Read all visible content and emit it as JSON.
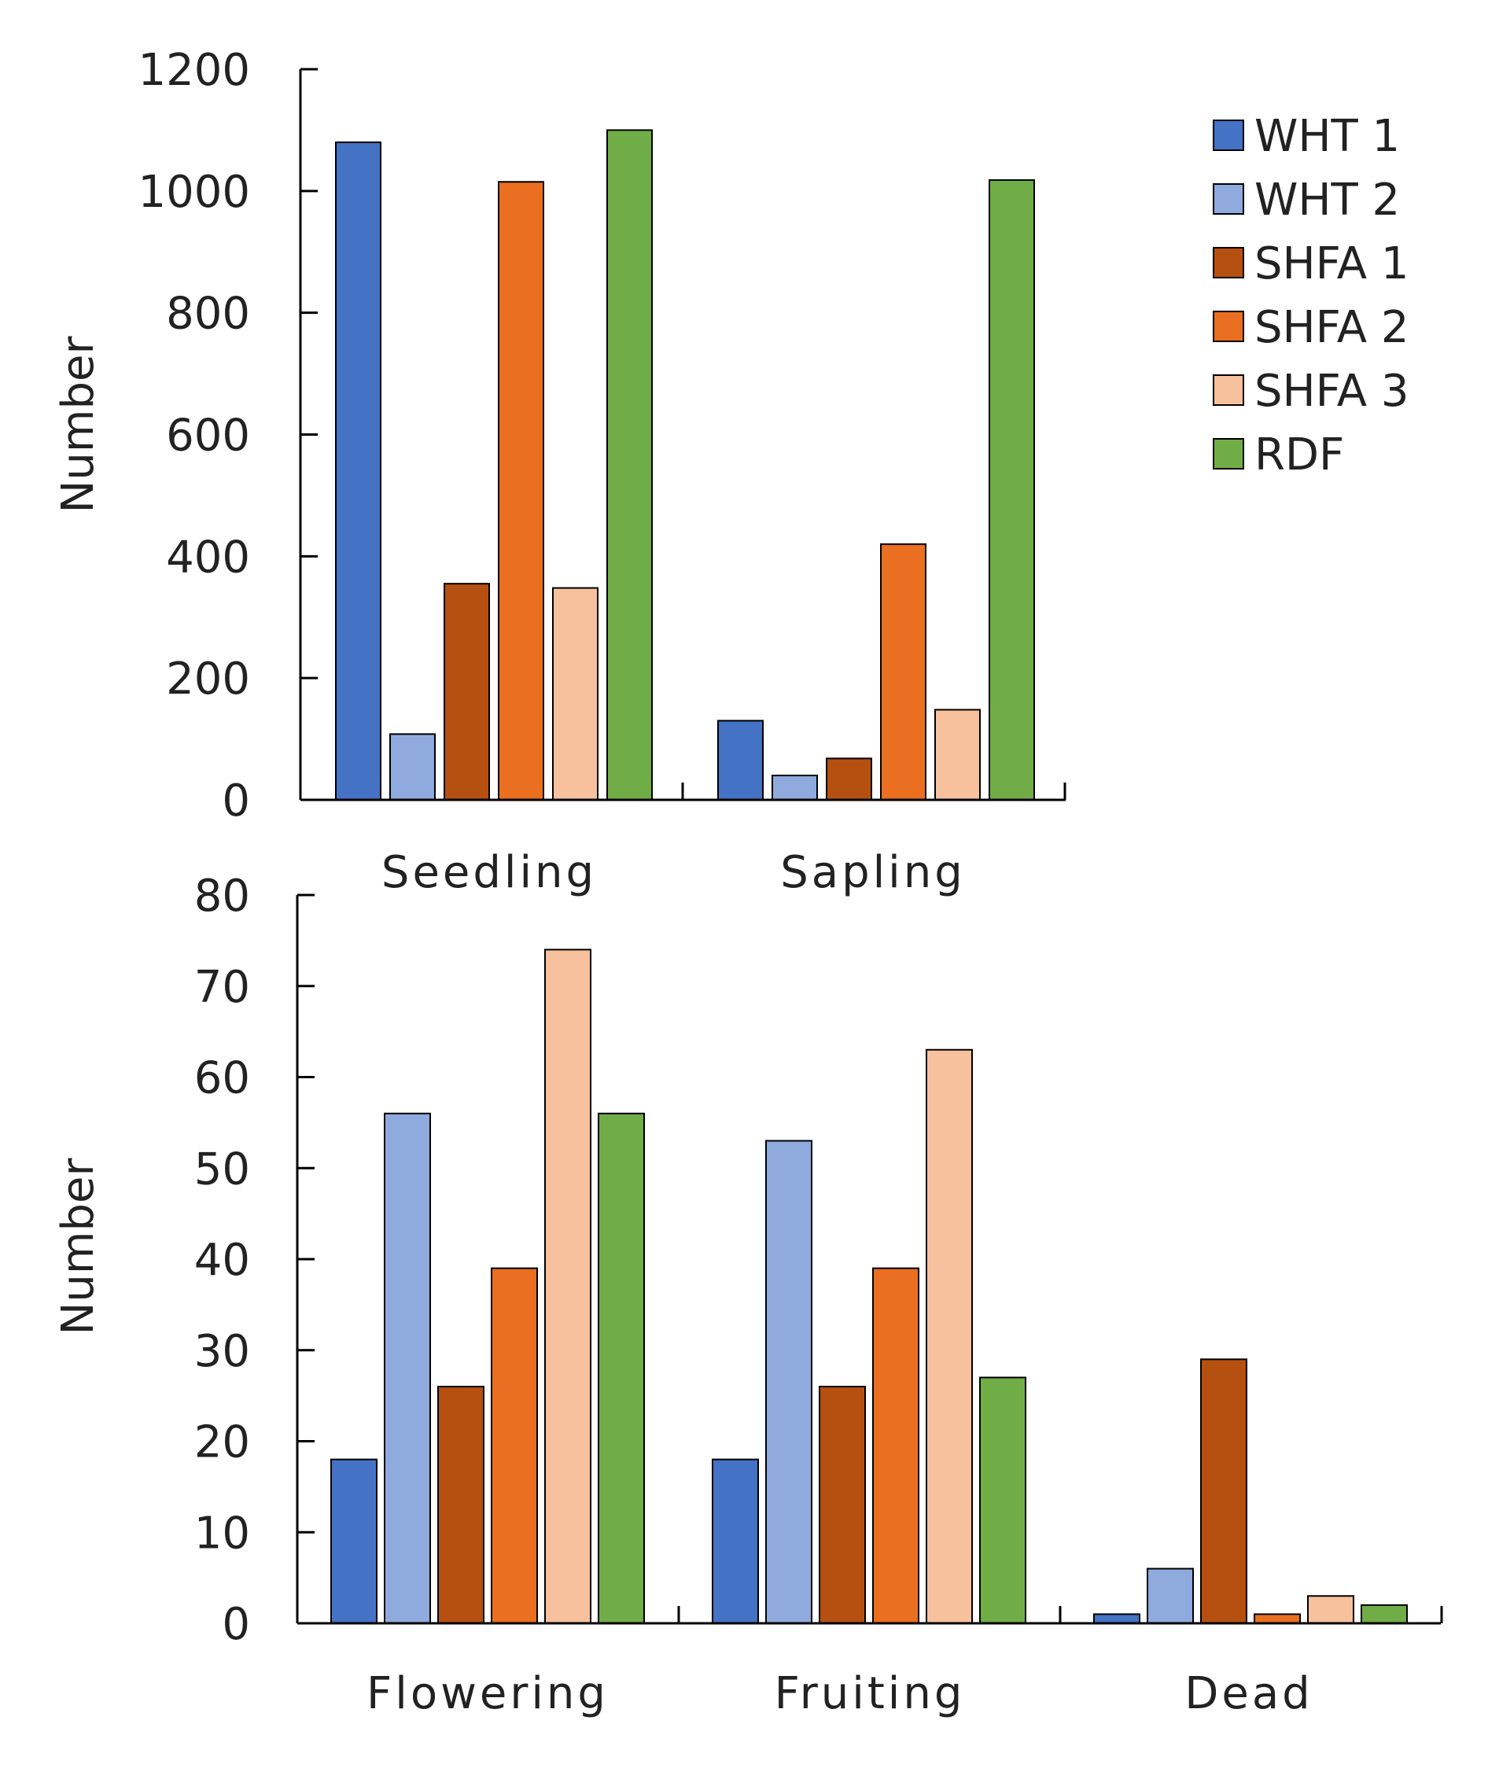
{
  "series_styles": [
    {
      "name": "WHT 1",
      "color": "#4472C4"
    },
    {
      "name": "WHT 2",
      "color": "#8FAADC"
    },
    {
      "name": "SHFA 1",
      "color": "#B65010"
    },
    {
      "name": "SHFA 2",
      "color": "#EA6F20"
    },
    {
      "name": "SHFA 3",
      "color": "#F6C19C"
    },
    {
      "name": "RDF",
      "color": "#70AD47"
    }
  ],
  "chart_data": [
    {
      "type": "bar",
      "title": "",
      "xlabel": "",
      "ylabel": "Number",
      "ylim": [
        0,
        1200
      ],
      "yticks": [
        0,
        200,
        400,
        600,
        800,
        1000,
        1200
      ],
      "grid": false,
      "legend": "top-right",
      "categories": [
        "Seedling",
        "Sapling"
      ],
      "series": [
        {
          "name": "WHT 1",
          "values": [
            1080,
            130
          ]
        },
        {
          "name": "WHT 2",
          "values": [
            108,
            40
          ]
        },
        {
          "name": "SHFA 1",
          "values": [
            355,
            68
          ]
        },
        {
          "name": "SHFA 2",
          "values": [
            1015,
            420
          ]
        },
        {
          "name": "SHFA 3",
          "values": [
            348,
            148
          ]
        },
        {
          "name": "RDF",
          "values": [
            1100,
            1018
          ]
        }
      ]
    },
    {
      "type": "bar",
      "title": "",
      "xlabel": "",
      "ylabel": "Number",
      "ylim": [
        0,
        80
      ],
      "yticks": [
        0,
        10,
        20,
        30,
        40,
        50,
        60,
        70,
        80
      ],
      "grid": false,
      "legend": "none",
      "categories": [
        "Flowering",
        "Fruiting",
        "Dead"
      ],
      "series": [
        {
          "name": "WHT 1",
          "values": [
            18,
            18,
            1
          ]
        },
        {
          "name": "WHT 2",
          "values": [
            56,
            53,
            6
          ]
        },
        {
          "name": "SHFA 1",
          "values": [
            26,
            26,
            29
          ]
        },
        {
          "name": "SHFA 2",
          "values": [
            39,
            39,
            1
          ]
        },
        {
          "name": "SHFA 3",
          "values": [
            74,
            63,
            3
          ]
        },
        {
          "name": "RDF",
          "values": [
            56,
            27,
            2
          ]
        }
      ]
    }
  ]
}
